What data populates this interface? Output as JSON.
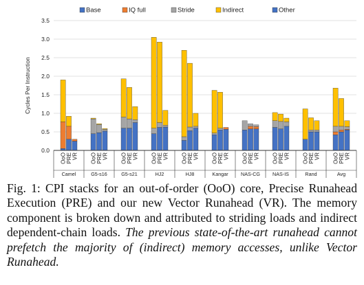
{
  "chart_data": {
    "type": "bar",
    "stacked": true,
    "ylabel": "Cycles Per Instruction",
    "ylim": [
      0,
      3.5
    ],
    "yticks": [
      "0.0",
      "0.5",
      "1.0",
      "1.5",
      "2.0",
      "2.5",
      "3.0",
      "3.5"
    ],
    "legend_position": "top",
    "series": [
      {
        "name": "Base",
        "color": "#4472c4"
      },
      {
        "name": "IQ full",
        "color": "#ed7d31"
      },
      {
        "name": "Stride",
        "color": "#a5a5a5"
      },
      {
        "name": "Indirect",
        "color": "#ffc000"
      },
      {
        "name": "Other",
        "color": "#4472c4"
      }
    ],
    "bar_labels": [
      "OoO",
      "PRE",
      "VR"
    ],
    "groups": [
      {
        "name": "Camel",
        "bars": [
          {
            "label": "OoO",
            "values": [
              0.05,
              0.72,
              0.0,
              1.13,
              0.0
            ]
          },
          {
            "label": "PRE",
            "values": [
              0.3,
              0.35,
              0.0,
              0.27,
              0.0
            ]
          },
          {
            "label": "VR",
            "values": [
              0.25,
              0.05,
              0.0,
              0.0,
              0.0
            ]
          }
        ]
      },
      {
        "name": "G5-s16",
        "bars": [
          {
            "label": "OoO",
            "values": [
              0.45,
              0.0,
              0.4,
              0.02,
              0.0
            ]
          },
          {
            "label": "PRE",
            "values": [
              0.48,
              0.0,
              0.22,
              0.02,
              0.0
            ]
          },
          {
            "label": "VR",
            "values": [
              0.52,
              0.0,
              0.05,
              0.02,
              0.0
            ]
          }
        ]
      },
      {
        "name": "G5-s21",
        "bars": [
          {
            "label": "OoO",
            "values": [
              0.6,
              0.0,
              0.3,
              1.03,
              0.0
            ]
          },
          {
            "label": "PRE",
            "values": [
              0.6,
              0.0,
              0.25,
              0.85,
              0.0
            ]
          },
          {
            "label": "VR",
            "values": [
              0.75,
              0.0,
              0.08,
              0.35,
              0.0
            ]
          }
        ]
      },
      {
        "name": "HJ2",
        "bars": [
          {
            "label": "OoO",
            "values": [
              0.45,
              0.0,
              0.15,
              2.45,
              0.0
            ]
          },
          {
            "label": "PRE",
            "values": [
              0.62,
              0.0,
              0.13,
              2.17,
              0.0
            ]
          },
          {
            "label": "VR",
            "values": [
              0.63,
              0.0,
              0.05,
              0.4,
              0.0
            ]
          }
        ]
      },
      {
        "name": "HJ8",
        "bars": [
          {
            "label": "OoO",
            "values": [
              0.27,
              0.0,
              0.1,
              2.33,
              0.0
            ]
          },
          {
            "label": "PRE",
            "values": [
              0.53,
              0.0,
              0.1,
              1.72,
              0.0
            ]
          },
          {
            "label": "VR",
            "values": [
              0.6,
              0.0,
              0.05,
              0.35,
              0.0
            ]
          }
        ]
      },
      {
        "name": "Kangar",
        "bars": [
          {
            "label": "OoO",
            "values": [
              0.42,
              0.0,
              0.05,
              1.15,
              0.0
            ]
          },
          {
            "label": "PRE",
            "values": [
              0.55,
              0.0,
              0.05,
              0.97,
              0.0
            ]
          },
          {
            "label": "VR",
            "values": [
              0.57,
              0.05,
              0.0,
              0.0,
              0.0
            ]
          }
        ]
      },
      {
        "name": "NAS-CG",
        "bars": [
          {
            "label": "OoO",
            "values": [
              0.55,
              0.0,
              0.25,
              0.0,
              0.0
            ]
          },
          {
            "label": "PRE",
            "values": [
              0.58,
              0.07,
              0.07,
              0.0,
              0.0
            ]
          },
          {
            "label": "VR",
            "values": [
              0.58,
              0.06,
              0.05,
              0.0,
              0.0
            ]
          }
        ]
      },
      {
        "name": "NAS-IS",
        "bars": [
          {
            "label": "OoO",
            "values": [
              0.62,
              0.0,
              0.18,
              0.22,
              0.0
            ]
          },
          {
            "label": "PRE",
            "values": [
              0.58,
              0.0,
              0.2,
              0.2,
              0.0
            ]
          },
          {
            "label": "VR",
            "values": [
              0.65,
              0.0,
              0.12,
              0.1,
              0.0
            ]
          }
        ]
      },
      {
        "name": "Rand",
        "bars": [
          {
            "label": "OoO",
            "values": [
              0.3,
              0.0,
              0.0,
              0.82,
              0.0
            ]
          },
          {
            "label": "PRE",
            "values": [
              0.5,
              0.0,
              0.05,
              0.33,
              0.0
            ]
          },
          {
            "label": "VR",
            "values": [
              0.5,
              0.0,
              0.05,
              0.25,
              0.0
            ]
          }
        ]
      },
      {
        "name": "Avg",
        "bars": [
          {
            "label": "OoO",
            "values": [
              0.42,
              0.08,
              0.15,
              1.03,
              0.0
            ]
          },
          {
            "label": "PRE",
            "values": [
              0.5,
              0.05,
              0.1,
              0.75,
              0.0
            ]
          },
          {
            "label": "VR",
            "values": [
              0.55,
              0.02,
              0.07,
              0.16,
              0.0
            ]
          }
        ]
      }
    ]
  },
  "caption": {
    "lead": "Fig. 1: CPI stacks for an out-of-order (OoO) core, Precise Runahead Execution (PRE) and our new Vector Runahead (VR). The memory component is broken down and attributed to striding loads and indirect dependent-chain loads.",
    "emphasis": "The previous state-of-the-art runahead cannot prefetch the majority of (indirect) memory accesses, unlike Vector Runahead."
  }
}
